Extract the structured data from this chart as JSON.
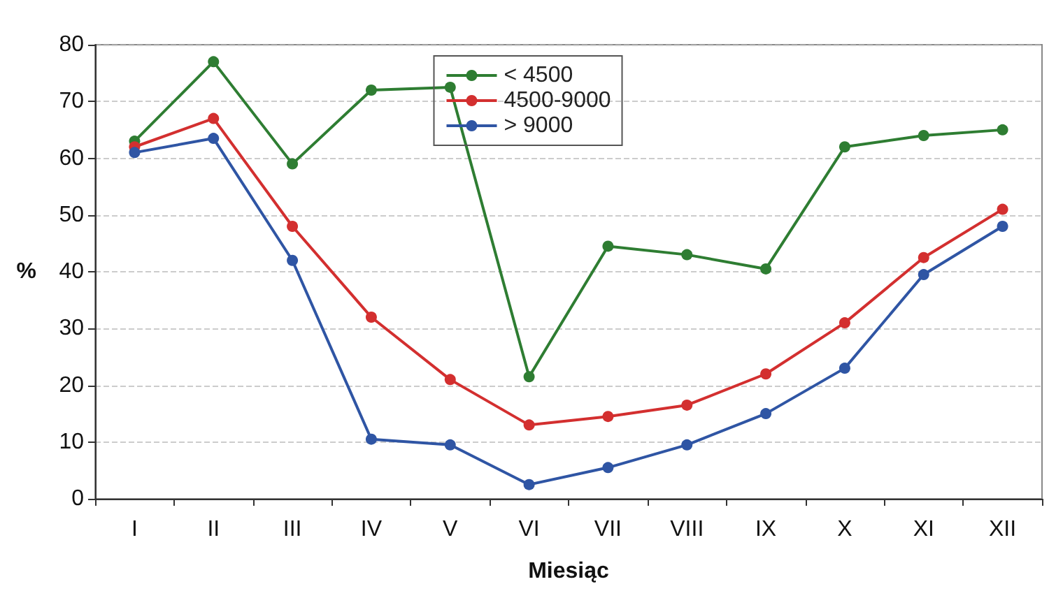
{
  "chart_data": {
    "type": "line",
    "xlabel": "Miesiąc",
    "ylabel": "%",
    "categories": [
      "I",
      "II",
      "III",
      "IV",
      "V",
      "VI",
      "VII",
      "VIII",
      "IX",
      "X",
      "XI",
      "XII"
    ],
    "series": [
      {
        "name": "< 4500",
        "color": "#2e7d32",
        "values": [
          63,
          77,
          59,
          72,
          72.5,
          21.5,
          44.5,
          43,
          40.5,
          62,
          64,
          65
        ]
      },
      {
        "name": "4500-9000",
        "color": "#d32f2f",
        "values": [
          62,
          67,
          48,
          32,
          21,
          13,
          14.5,
          16.5,
          22,
          31,
          42.5,
          51
        ]
      },
      {
        "name": "> 9000",
        "color": "#2f55a4",
        "values": [
          61,
          63.5,
          42,
          10.5,
          9.5,
          2.5,
          5.5,
          9.5,
          15,
          23,
          39.5,
          48
        ]
      }
    ],
    "ylim": [
      0,
      80
    ],
    "yticks": [
      0,
      10,
      20,
      30,
      40,
      50,
      60,
      70,
      80
    ],
    "grid": "y",
    "legend": "top",
    "marker": "circle",
    "line_style": "solid"
  }
}
